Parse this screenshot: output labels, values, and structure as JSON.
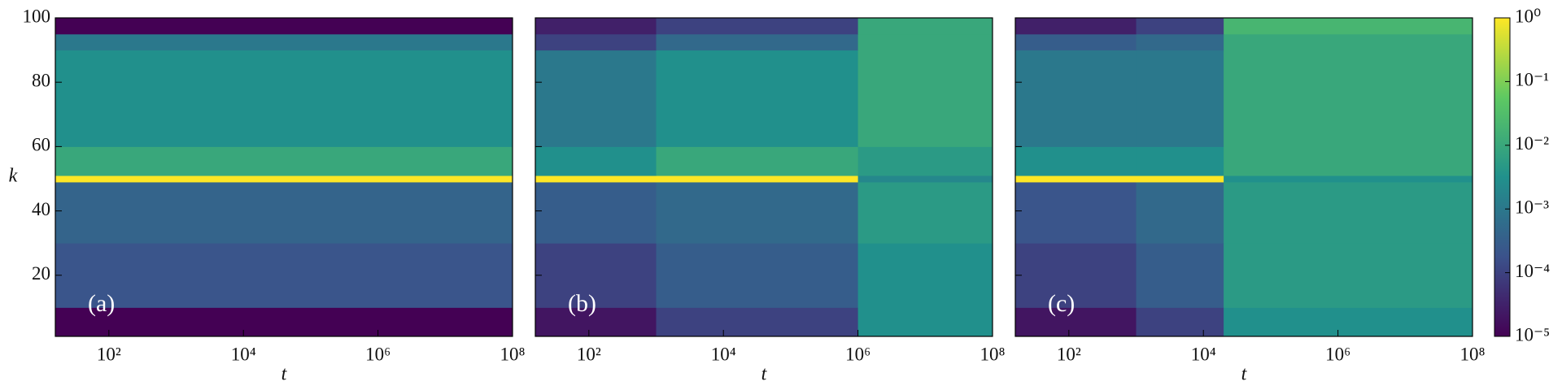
{
  "chart_data": [
    {
      "type": "heatmap",
      "panel_label": "(a)",
      "xlabel": "t",
      "ylabel": "k",
      "xscale": "log",
      "xlim": [
        16,
        100000000
      ],
      "ylim": [
        1,
        100
      ],
      "xticks": [
        {
          "value": 100,
          "label": "10²"
        },
        {
          "value": 10000,
          "label": "10⁴"
        },
        {
          "value": 1000000,
          "label": "10⁶"
        },
        {
          "value": 100000000,
          "label": "10⁸"
        }
      ],
      "yticks": [
        20,
        40,
        60,
        80,
        100
      ],
      "tbins": [
        16,
        100000000
      ],
      "kbins": [
        1,
        10,
        30,
        49,
        51,
        60,
        90,
        95,
        100
      ],
      "z": [
        [
          1e-05
        ],
        [
          0.0002
        ],
        [
          0.0004
        ],
        [
          1
        ],
        [
          0.01
        ],
        [
          0.003
        ],
        [
          0.001
        ],
        [
          1e-05
        ]
      ]
    },
    {
      "type": "heatmap",
      "panel_label": "(b)",
      "xlabel": "t",
      "xscale": "log",
      "xlim": [
        16,
        100000000
      ],
      "ylim": [
        1,
        100
      ],
      "xticks": [
        {
          "value": 100,
          "label": "10²"
        },
        {
          "value": 10000,
          "label": "10⁴"
        },
        {
          "value": 1000000,
          "label": "10⁶"
        },
        {
          "value": 100000000,
          "label": "10⁸"
        }
      ],
      "yticks": [
        20,
        40,
        60,
        80,
        100
      ],
      "tbins": [
        16,
        1000,
        1000000,
        100000000
      ],
      "kbins": [
        1,
        10,
        30,
        49,
        51,
        60,
        90,
        95,
        100
      ],
      "z": [
        [
          2e-05,
          0.0001,
          0.003
        ],
        [
          0.0001,
          0.0003,
          0.003
        ],
        [
          0.0003,
          0.0005,
          0.005
        ],
        [
          1,
          1,
          0.002
        ],
        [
          0.003,
          0.01,
          0.005
        ],
        [
          0.001,
          0.003,
          0.01
        ],
        [
          0.0001,
          0.0005,
          0.01
        ],
        [
          3e-05,
          0.0001,
          0.01
        ]
      ]
    },
    {
      "type": "heatmap",
      "panel_label": "(c)",
      "xlabel": "t",
      "xscale": "log",
      "xlim": [
        16,
        100000000
      ],
      "ylim": [
        1,
        100
      ],
      "xticks": [
        {
          "value": 100,
          "label": "10²"
        },
        {
          "value": 10000,
          "label": "10⁴"
        },
        {
          "value": 1000000,
          "label": "10⁶"
        },
        {
          "value": 100000000,
          "label": "10⁸"
        }
      ],
      "yticks": [
        20,
        40,
        60,
        80,
        100
      ],
      "tbins": [
        16,
        1000,
        20000,
        100000000
      ],
      "kbins": [
        1,
        10,
        30,
        49,
        51,
        60,
        90,
        95,
        100
      ],
      "z": [
        [
          2e-05,
          0.0001,
          0.003
        ],
        [
          0.0001,
          0.0003,
          0.005
        ],
        [
          0.0002,
          0.0005,
          0.005
        ],
        [
          1,
          1,
          0.003
        ],
        [
          0.003,
          0.003,
          0.01
        ],
        [
          0.001,
          0.001,
          0.01
        ],
        [
          0.0003,
          0.0005,
          0.01
        ],
        [
          3e-05,
          0.0001,
          0.02
        ]
      ]
    }
  ],
  "colorbar": {
    "colormap": "viridis",
    "scale": "log",
    "zlim": [
      1e-05,
      1
    ],
    "ticks": [
      {
        "value": 1,
        "label": "10⁰"
      },
      {
        "value": 0.1,
        "label": "10⁻¹"
      },
      {
        "value": 0.01,
        "label": "10⁻²"
      },
      {
        "value": 0.001,
        "label": "10⁻³"
      },
      {
        "value": 0.0001,
        "label": "10⁻⁴"
      },
      {
        "value": 1e-05,
        "label": "10⁻⁵"
      }
    ]
  }
}
